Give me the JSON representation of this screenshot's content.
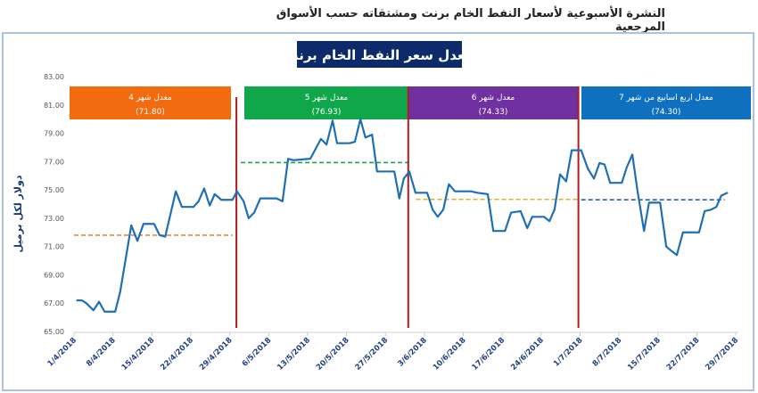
{
  "header": {
    "title": "النشرة الأسبوعية  لأسعار النفط الخام برنت ومشتقاته حسب الأسواق المرجعية"
  },
  "chart_data": {
    "type": "line",
    "title": "معدل سعر النفط الخام  برنت",
    "ylabel": "دولار لكل برميل",
    "xlabel": "",
    "ylim": [
      65,
      83
    ],
    "yticks": [
      "65.00",
      "67.00",
      "69.00",
      "71.00",
      "73.00",
      "75.00",
      "77.00",
      "79.00",
      "81.00",
      "83.00"
    ],
    "xticks": [
      "1/4/2018",
      "8/4/2018",
      "15/4/2018",
      "22/4/2018",
      "29/4/2018",
      "6/5/2018",
      "13/5/2018",
      "20/5/2018",
      "27/5/2018",
      "3/6/2018",
      "10/6/2018",
      "17/6/2018",
      "24/6/2018",
      "1/7/2018",
      "8/7/2018",
      "15/7/2018",
      "22/7/2018",
      "29/7/2018"
    ],
    "x_unit": "days since 1/4/2018",
    "colors": {
      "line": "#1f6fb4",
      "divider": "#b01c20"
    },
    "series": [
      {
        "name": "Brent",
        "x": [
          0.5,
          1.4,
          2.2,
          3.5,
          4.5,
          5.5,
          7.4,
          8.3,
          10.3,
          11.4,
          12.5,
          14.4,
          15.4,
          16.4,
          18.3,
          19.4,
          21.5,
          22.4,
          23.4,
          24.4,
          25.3,
          26.5,
          28.5,
          29.3,
          30.5,
          31.4,
          32.4,
          33.5,
          36.4,
          37.5,
          38.5,
          39.4,
          42.5,
          44.4,
          45.4,
          46.5,
          47.3,
          49.6,
          50.5,
          51.5,
          52.4,
          53.6,
          54.5,
          55.6,
          57.6,
          58.5,
          59.3,
          60.3,
          61.4,
          63.5,
          64.5,
          65.4,
          66.4,
          67.4,
          68.5,
          71.4,
          72.5,
          74.4,
          75.4,
          77.5,
          78.6,
          80.3,
          81.5,
          82.4,
          84.5,
          85.5,
          86.4,
          87.4,
          88.5,
          89.5,
          91.2,
          92.4,
          93.5,
          94.5,
          95.4,
          96.4,
          98.5,
          99.4,
          100.4,
          101.3,
          102.5,
          103.4,
          105.4,
          106.5,
          107.4,
          108.4,
          109.5,
          112.4,
          113.4,
          114.5,
          115.5,
          116.4,
          117.5
        ],
        "values": [
          67.2,
          67.2,
          67.0,
          66.5,
          67.1,
          66.4,
          66.4,
          67.8,
          72.5,
          71.4,
          72.6,
          72.6,
          71.8,
          71.7,
          74.9,
          73.8,
          73.8,
          74.2,
          75.1,
          73.9,
          74.7,
          74.3,
          74.3,
          74.9,
          74.2,
          73.0,
          73.4,
          74.4,
          74.4,
          74.2,
          77.2,
          77.1,
          77.2,
          78.6,
          78.2,
          79.9,
          78.3,
          78.3,
          78.4,
          80.0,
          78.7,
          78.9,
          76.3,
          76.3,
          76.3,
          74.4,
          75.8,
          76.3,
          74.8,
          74.8,
          73.6,
          73.1,
          73.6,
          75.4,
          74.9,
          74.9,
          74.8,
          74.7,
          72.1,
          72.1,
          73.4,
          73.5,
          72.3,
          73.1,
          73.1,
          72.8,
          73.6,
          76.1,
          75.6,
          77.8,
          77.8,
          76.5,
          75.8,
          76.9,
          76.8,
          75.5,
          75.5,
          76.6,
          77.5,
          75.0,
          72.1,
          74.1,
          74.1,
          71.0,
          70.7,
          70.4,
          72.0,
          72.0,
          73.5,
          73.6,
          73.8,
          74.6,
          74.8
        ]
      }
    ],
    "averages": [
      {
        "label": "معدل شهر 4",
        "value": 71.8,
        "value_label": "(71.80)",
        "from": 0,
        "to": 28.5,
        "color": "#f26b0f",
        "line_color": "#e28a3a"
      },
      {
        "label": "معدل شهر 5",
        "value": 76.93,
        "value_label": "(76.93)",
        "from": 30,
        "to": 60,
        "color": "#10a64a",
        "line_color": "#1aa350"
      },
      {
        "label": "معدل شهر 6",
        "value": 74.33,
        "value_label": "(74.33)",
        "from": 61.5,
        "to": 90.5,
        "color": "#7030a0",
        "line_color": "#e0b020"
      },
      {
        "label": "معدل اربع اسابيع من شهر 7",
        "value": 74.3,
        "value_label": "(74.30)",
        "from": 91.2,
        "to": 117,
        "color": "#1070c0",
        "line_color": "#2f5f9f"
      }
    ],
    "dividers": [
      29.2,
      60.1,
      90.7
    ]
  }
}
